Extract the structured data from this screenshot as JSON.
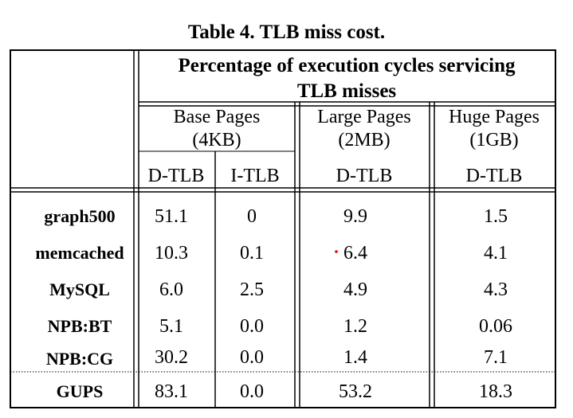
{
  "table": {
    "caption": "Table 4. TLB miss cost.",
    "header_main_line1": "Percentage of execution cycles servicing",
    "header_main_line2": "TLB misses",
    "groups": [
      {
        "line1": "Base Pages",
        "line2": "(4KB)"
      },
      {
        "line1": "Large Pages",
        "line2": "(2MB)"
      },
      {
        "line1": "Huge Pages",
        "line2": "(1GB)"
      }
    ],
    "subheaders": [
      "D-TLB",
      "I-TLB",
      "D-TLB",
      "D-TLB"
    ],
    "rows": [
      {
        "label": "graph500",
        "values": [
          "51.1",
          "0",
          "9.9",
          "1.5"
        ]
      },
      {
        "label": "memcached",
        "values": [
          "10.3",
          "0.1",
          "6.4",
          "4.1"
        ]
      },
      {
        "label": "MySQL",
        "values": [
          "6.0",
          "2.5",
          "4.9",
          "4.3"
        ]
      },
      {
        "label": "NPB:BT",
        "values": [
          "5.1",
          "0.0",
          "1.2",
          "0.06"
        ]
      },
      {
        "label": "NPB:CG",
        "values": [
          "30.2",
          "0.0",
          "1.4",
          "7.1"
        ]
      },
      {
        "label": "GUPS",
        "values": [
          "83.1",
          "0.0",
          "53.2",
          "18.3"
        ]
      }
    ],
    "accent_color": "#e00000"
  }
}
